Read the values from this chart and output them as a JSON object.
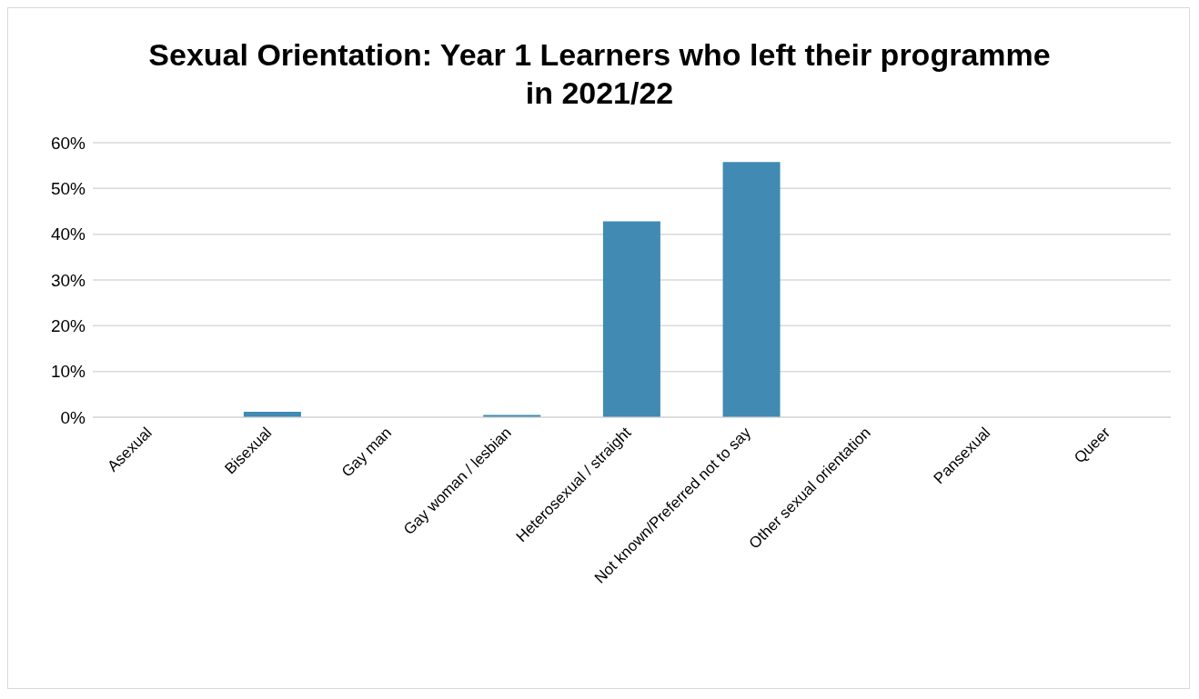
{
  "chart_data": {
    "type": "bar",
    "title": "Sexual Orientation: Year 1 Learners who left their programme in 2021/22",
    "categories": [
      "Asexual",
      "Bisexual",
      "Gay man",
      "Gay woman / lesbian",
      "Heterosexual / straight",
      "Not known/Preferred not to say",
      "Other sexual orientation",
      "Pansexual",
      "Queer"
    ],
    "values": [
      0,
      1.2,
      0,
      0.5,
      42.8,
      55.8,
      0,
      0,
      0
    ],
    "color": "#418ab3",
    "ylim": [
      0,
      60
    ],
    "yticks": [
      {
        "value": 0,
        "label": "0%"
      },
      {
        "value": 10,
        "label": "10%"
      },
      {
        "value": 20,
        "label": "20%"
      },
      {
        "value": 30,
        "label": "30%"
      },
      {
        "value": 40,
        "label": "40%"
      },
      {
        "value": 50,
        "label": "50%"
      },
      {
        "value": 60,
        "label": "60%"
      }
    ],
    "grid": "y"
  }
}
